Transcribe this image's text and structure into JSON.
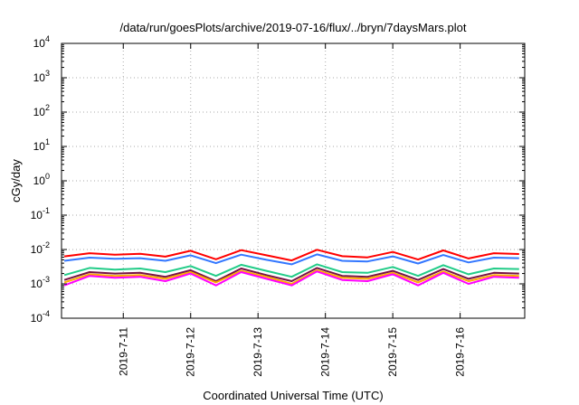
{
  "chart_data": {
    "type": "line",
    "title": "/data/run/goesPlots/archive/2019-07-16/flux/../bryn/7daysMars.plot",
    "xlabel": "Coordinated Universal Time (UTC)",
    "ylabel": "cGy/day",
    "yscale": "log",
    "ylim": [
      0.0001,
      10000
    ],
    "xlim": [
      "2019-07-10T02:00",
      "2019-07-16T23:00"
    ],
    "grid": true,
    "legend": "none",
    "y_ticks": [
      {
        "base": "10",
        "exp": "-4",
        "value": 0.0001
      },
      {
        "base": "10",
        "exp": "-3",
        "value": 0.001
      },
      {
        "base": "10",
        "exp": "-2",
        "value": 0.01
      },
      {
        "base": "10",
        "exp": "-1",
        "value": 0.1
      },
      {
        "base": "10",
        "exp": "0",
        "value": 1
      },
      {
        "base": "10",
        "exp": "1",
        "value": 10
      },
      {
        "base": "10",
        "exp": "2",
        "value": 100
      },
      {
        "base": "10",
        "exp": "3",
        "value": 1000
      },
      {
        "base": "10",
        "exp": "4",
        "value": 10000
      }
    ],
    "x_ticks": [
      {
        "label": "2019-7-11",
        "value": "2019-07-11T00:00"
      },
      {
        "label": "2019-7-12",
        "value": "2019-07-12T00:00"
      },
      {
        "label": "2019-7-13",
        "value": "2019-07-13T00:00"
      },
      {
        "label": "2019-7-14",
        "value": "2019-07-14T00:00"
      },
      {
        "label": "2019-7-15",
        "value": "2019-07-15T00:00"
      },
      {
        "label": "2019-7-16",
        "value": "2019-07-16T00:00"
      }
    ],
    "x": [
      "2019-07-10T03:00",
      "2019-07-10T12:00",
      "2019-07-10T21:00",
      "2019-07-11T06:00",
      "2019-07-11T15:00",
      "2019-07-12T00:00",
      "2019-07-12T09:00",
      "2019-07-12T18:00",
      "2019-07-13T03:00",
      "2019-07-13T12:00",
      "2019-07-13T21:00",
      "2019-07-14T06:00",
      "2019-07-14T15:00",
      "2019-07-15T00:00",
      "2019-07-15T09:00",
      "2019-07-15T18:00",
      "2019-07-16T03:00",
      "2019-07-16T12:00",
      "2019-07-16T21:00"
    ],
    "series": [
      {
        "color": "#ff0000",
        "values": [
          0.0063,
          0.0078,
          0.0071,
          0.0075,
          0.0062,
          0.0092,
          0.0052,
          0.0096,
          0.0068,
          0.0048,
          0.0098,
          0.0064,
          0.0059,
          0.0085,
          0.0051,
          0.0094,
          0.0055,
          0.0078,
          0.0074
        ]
      },
      {
        "color": "#3377ff",
        "values": [
          0.0047,
          0.0058,
          0.0054,
          0.0056,
          0.0047,
          0.0068,
          0.004,
          0.0071,
          0.005,
          0.0037,
          0.0072,
          0.0047,
          0.0045,
          0.0063,
          0.0039,
          0.0069,
          0.0042,
          0.0058,
          0.0056
        ]
      },
      {
        "color": "#22cc88",
        "values": [
          0.0018,
          0.0029,
          0.0026,
          0.0028,
          0.0022,
          0.0033,
          0.0017,
          0.0036,
          0.0024,
          0.0016,
          0.0037,
          0.0022,
          0.0021,
          0.0031,
          0.0017,
          0.0035,
          0.0019,
          0.0028,
          0.0027
        ]
      },
      {
        "color": "#771144",
        "values": [
          0.0013,
          0.0022,
          0.002,
          0.0021,
          0.0016,
          0.0025,
          0.0012,
          0.0028,
          0.0018,
          0.0012,
          0.0029,
          0.0017,
          0.0016,
          0.0024,
          0.0013,
          0.0027,
          0.0014,
          0.0021,
          0.002
        ]
      },
      {
        "color": "#ffaa00",
        "values": [
          0.0011,
          0.0019,
          0.0017,
          0.0018,
          0.0014,
          0.0022,
          0.0011,
          0.0024,
          0.0016,
          0.001,
          0.0025,
          0.0015,
          0.0014,
          0.0021,
          0.0011,
          0.0023,
          0.0012,
          0.0018,
          0.0017
        ]
      },
      {
        "color": "#ff00ff",
        "values": [
          0.0009,
          0.0017,
          0.0015,
          0.0016,
          0.0012,
          0.002,
          0.0009,
          0.0022,
          0.0014,
          0.0009,
          0.0023,
          0.0013,
          0.0012,
          0.0019,
          0.0009,
          0.0021,
          0.001,
          0.0016,
          0.0015
        ]
      }
    ]
  }
}
